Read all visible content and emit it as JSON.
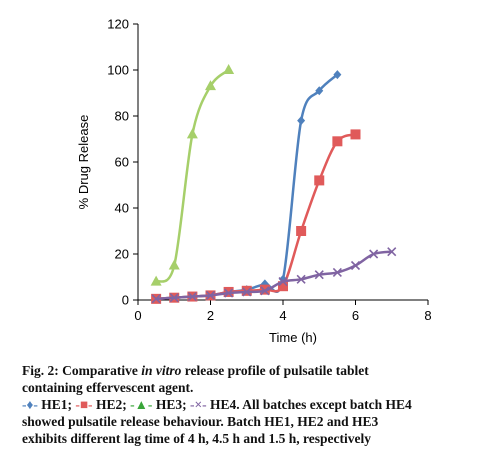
{
  "chart_data": {
    "type": "line",
    "xlabel": "Time (h)",
    "ylabel": "% Drug Release",
    "xlim": [
      0,
      8
    ],
    "ylim": [
      0,
      120
    ],
    "xticks": [
      0,
      2,
      4,
      6,
      8
    ],
    "yticks": [
      0,
      20,
      40,
      60,
      80,
      100,
      120
    ],
    "grid": false,
    "series": [
      {
        "name": "HE1",
        "color": "#4f81bd",
        "marker": "diamond",
        "x": [
          0.5,
          1,
          1.5,
          2,
          2.5,
          3,
          3.5,
          4,
          4.5,
          5,
          5.5
        ],
        "y": [
          0.5,
          1,
          1.5,
          2,
          3.5,
          4.5,
          7,
          9,
          78,
          91,
          98
        ]
      },
      {
        "name": "HE2",
        "color": "#e05a5a",
        "marker": "square",
        "x": [
          0.5,
          1,
          1.5,
          2,
          2.5,
          3,
          3.5,
          4,
          4.5,
          5,
          5.5,
          6
        ],
        "y": [
          0.5,
          1,
          1.5,
          2,
          3.5,
          4,
          4.5,
          6,
          30,
          52,
          69,
          72
        ]
      },
      {
        "name": "HE3",
        "color": "#a6cf6a",
        "marker": "triangle",
        "x": [
          0.5,
          1,
          1.5,
          2,
          2.5
        ],
        "y": [
          8,
          15,
          72,
          93,
          100
        ]
      },
      {
        "name": "HE4",
        "color": "#8064a2",
        "marker": "x",
        "x": [
          0.5,
          1,
          1.5,
          2,
          2.5,
          3,
          3.5,
          4,
          4.5,
          5,
          5.5,
          6,
          6.5,
          7
        ],
        "y": [
          0.5,
          1,
          1.5,
          2,
          3,
          3.5,
          4,
          8,
          9,
          11,
          12,
          15,
          20,
          21
        ]
      }
    ]
  },
  "caption": {
    "fig_label": "Fig. 2:",
    "line1_pre": " Comparative ",
    "line1_italic": "in vitro",
    "line1_post": " release profile of pulsatile tablet",
    "line2": "containing effervescent agent.",
    "legend_he1_mark": "-♦-",
    "legend_he1": " HE1; ",
    "legend_he2_mark": "-■-",
    "legend_he2": " HE2; ",
    "legend_he3_mark": "-▲-",
    "legend_he3": " HE3; ",
    "legend_he4_mark": "-×-",
    "legend_he4_post": " HE4. All batches except batch HE4",
    "line4": "showed pulsatile release behaviour. Batch HE1, HE2 and HE3",
    "line5": "exhibits different lag time of 4 h, 4.5 h and 1.5 h, respectively"
  }
}
